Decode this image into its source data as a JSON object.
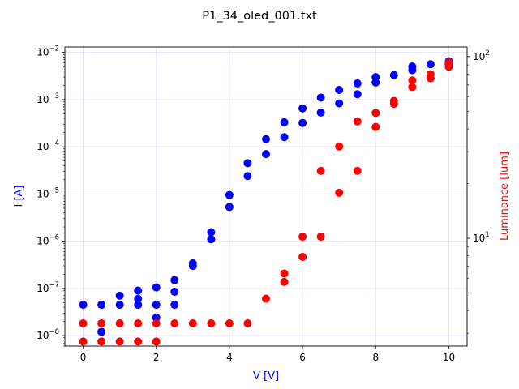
{
  "chart_data": {
    "type": "scatter",
    "title": "P1_34_oled_001.txt",
    "xlabel": "V [V]",
    "ylabel_left": "I [A]",
    "ylabel_right": "Luminance [lum]",
    "xlim": [
      -0.5,
      10.5
    ],
    "x_ticks": [
      0,
      2,
      4,
      6,
      8,
      10
    ],
    "y_left": {
      "scale": "log",
      "lim": [
        6e-09,
        0.013
      ],
      "ticks": [
        1e-08,
        1e-07,
        1e-06,
        1e-05,
        0.0001,
        0.001,
        0.01
      ]
    },
    "y_right": {
      "scale": "log",
      "lim": [
        2.55,
        113
      ],
      "ticks": [
        10,
        100
      ]
    },
    "grid": true,
    "series": [
      {
        "axis": "left",
        "color": "#0000ff",
        "points": [
          [
            0,
            4.5e-08
          ],
          [
            0.5,
            4.5e-08
          ],
          [
            0.5,
            1.2e-08
          ],
          [
            1,
            7e-08
          ],
          [
            1,
            4.5e-08
          ],
          [
            1.5,
            9e-08
          ],
          [
            1.5,
            6e-08
          ],
          [
            1.5,
            4.5e-08
          ],
          [
            2,
            1.05e-07
          ],
          [
            2,
            4.5e-08
          ],
          [
            2,
            2.4e-08
          ],
          [
            2.5,
            1.5e-07
          ],
          [
            2.5,
            8.5e-08
          ],
          [
            2.5,
            4.5e-08
          ],
          [
            3,
            3.4e-07
          ],
          [
            3,
            3e-07
          ],
          [
            3.5,
            1.55e-06
          ],
          [
            3.5,
            1.1e-06
          ],
          [
            4,
            9.5e-06
          ],
          [
            4,
            5.3e-06
          ],
          [
            4.5,
            4.5e-05
          ],
          [
            4.5,
            2.4e-05
          ],
          [
            5,
            0.000145
          ],
          [
            5,
            7e-05
          ],
          [
            5.5,
            0.00033
          ],
          [
            5.5,
            0.00016
          ],
          [
            6,
            0.00065
          ],
          [
            6,
            0.00032
          ],
          [
            6.5,
            0.0011
          ],
          [
            6.5,
            0.00053
          ],
          [
            7,
            0.0016
          ],
          [
            7,
            0.00083
          ],
          [
            7.5,
            0.0022
          ],
          [
            7.5,
            0.0013
          ],
          [
            8,
            0.003
          ],
          [
            8,
            0.0023
          ],
          [
            8.5,
            0.0033
          ],
          [
            9,
            0.005
          ],
          [
            9,
            0.0042
          ],
          [
            9.5,
            0.0056
          ],
          [
            10,
            0.0065
          ],
          [
            10,
            0.0056
          ]
        ]
      },
      {
        "axis": "right",
        "color": "#ff0000",
        "points": [
          [
            0,
            3.4
          ],
          [
            0,
            2.7
          ],
          [
            0.5,
            3.4
          ],
          [
            0.5,
            2.7
          ],
          [
            1,
            3.4
          ],
          [
            1,
            2.7
          ],
          [
            1.5,
            3.4
          ],
          [
            1.5,
            2.7
          ],
          [
            2,
            3.4
          ],
          [
            2,
            2.7
          ],
          [
            2.5,
            3.4
          ],
          [
            3,
            3.4
          ],
          [
            3.5,
            3.4
          ],
          [
            4,
            3.4
          ],
          [
            4.5,
            3.4
          ],
          [
            5,
            4.65
          ],
          [
            5.5,
            6.4
          ],
          [
            5.5,
            5.75
          ],
          [
            6,
            10.2
          ],
          [
            6,
            7.9
          ],
          [
            6.5,
            23.5
          ],
          [
            6.5,
            10.2
          ],
          [
            7,
            32.0
          ],
          [
            7,
            17.8
          ],
          [
            7.5,
            44.0
          ],
          [
            7.5,
            23.5
          ],
          [
            8,
            49.0
          ],
          [
            8,
            41.0
          ],
          [
            8.5,
            57.0
          ],
          [
            8.5,
            55.0
          ],
          [
            9,
            74.0
          ],
          [
            9,
            68.0
          ],
          [
            9.5,
            80.0
          ],
          [
            9.5,
            76.0
          ],
          [
            10,
            93.0
          ],
          [
            10,
            88.0
          ]
        ]
      }
    ]
  }
}
